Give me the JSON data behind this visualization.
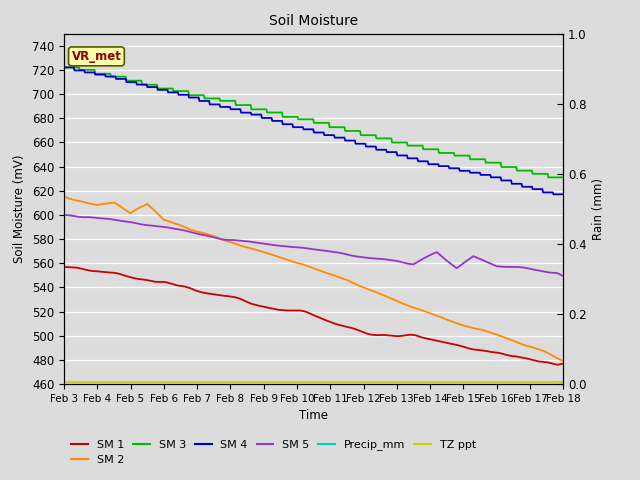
{
  "title": "Soil Moisture",
  "xlabel": "Time",
  "ylabel_left": "Soil Moisture (mV)",
  "ylabel_right": "Rain (mm)",
  "ylim_left": [
    460,
    750
  ],
  "ylim_right": [
    0.0,
    1.0
  ],
  "bg_color": "#dcdcdc",
  "x_labels": [
    "Feb 3",
    "Feb 4",
    "Feb 5",
    "Feb 6",
    "Feb 7",
    "Feb 8",
    "Feb 9",
    "Feb 10",
    "Feb 11",
    "Feb 12",
    "Feb 13",
    "Feb 14",
    "Feb 15",
    "Feb 16",
    "Feb 17",
    "Feb 18"
  ],
  "annotation_text": "VR_met",
  "annotation_bg": "#ffffaa",
  "annotation_border": "#8B0000",
  "yticks_left": [
    460,
    480,
    500,
    520,
    540,
    560,
    580,
    600,
    620,
    640,
    660,
    680,
    700,
    720,
    740
  ],
  "yticks_right": [
    0.0,
    0.2,
    0.4,
    0.6,
    0.8,
    1.0
  ],
  "sm1_color": "#cc0000",
  "sm2_color": "#ff8c00",
  "sm3_color": "#00bb00",
  "sm4_color": "#0000cc",
  "sm5_color": "#9933cc",
  "precip_color": "#00cccc",
  "tz_color": "#cccc00",
  "sm1_label": "SM 1",
  "sm2_label": "SM 2",
  "sm3_label": "SM 3",
  "sm4_label": "SM 4",
  "sm5_label": "SM 5",
  "precip_label": "Precip_mm",
  "tz_label": "TZ ppt",
  "n_days": 16,
  "pts_per_day": 48
}
